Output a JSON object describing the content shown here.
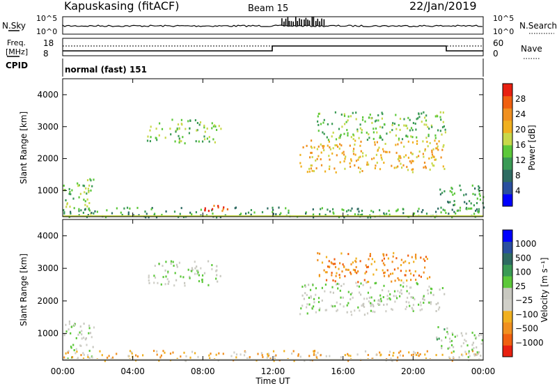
{
  "header": {
    "station": "Kapuskasing (fitACF)",
    "beam": "Beam 15",
    "date": "22/Jan/2019"
  },
  "noise_panel": {
    "left_label": "N.Sky",
    "right_label": "N.Search",
    "ticks": [
      "10^5",
      "10^0"
    ]
  },
  "freq_panel": {
    "left_label_1": "Freq.",
    "left_label_2": "[MHz]",
    "left_ticks": [
      "18",
      "8"
    ],
    "right_label": "Nave",
    "right_ticks": [
      "60",
      "0"
    ]
  },
  "cpid": {
    "label": "CPID",
    "mode": "normal (fast) 151"
  },
  "colors": {
    "power": [
      "#0000ff",
      "#2a4f9e",
      "#2e6b62",
      "#3a9a55",
      "#5cc83a",
      "#c8d84a",
      "#f0b020",
      "#f09020",
      "#f06010",
      "#e82010"
    ],
    "velocity": [
      "#e82010",
      "#f06010",
      "#f09020",
      "#f0b020",
      "#d0cfc8",
      "#c8c8c0",
      "#5cc83a",
      "#3a9a55",
      "#2e6b62",
      "#2a4f9e",
      "#0000ff"
    ]
  },
  "chart_data": [
    {
      "type": "heatmap",
      "name": "power-panel",
      "ylabel": "Slant Range [km]",
      "xlabel": "Time UT",
      "x_ticks": [
        "00:00",
        "04:00",
        "08:00",
        "12:00",
        "16:00",
        "20:00",
        "00:00"
      ],
      "y_ticks": [
        "1000",
        "2000",
        "3000",
        "4000"
      ],
      "ylim": [
        180,
        4500
      ],
      "xlim": [
        0,
        24
      ],
      "colorbar": {
        "label": "Power [dB]",
        "ticks": [
          "4",
          "8",
          "12",
          "16",
          "20",
          "24",
          "28"
        ]
      },
      "regions": [
        {
          "t0": 0.0,
          "t1": 1.8,
          "r0": 250,
          "r1": 1400,
          "level": 4
        },
        {
          "t0": 4.8,
          "t1": 9.0,
          "r0": 2500,
          "r1": 3250,
          "level": 4
        },
        {
          "t0": 0.0,
          "t1": 24.0,
          "r0": 190,
          "r1": 500,
          "level": 3
        },
        {
          "t0": 7.8,
          "t1": 9.4,
          "r0": 350,
          "r1": 600,
          "level": 8
        },
        {
          "t0": 13.5,
          "t1": 21.8,
          "r0": 1600,
          "r1": 2600,
          "level": 6
        },
        {
          "t0": 14.5,
          "t1": 22.0,
          "r0": 2600,
          "r1": 3500,
          "level": 4
        },
        {
          "t0": 21.5,
          "t1": 24.0,
          "r0": 300,
          "r1": 1200,
          "level": 3
        }
      ]
    },
    {
      "type": "heatmap",
      "name": "velocity-panel",
      "ylabel": "Slant Range [km]",
      "xlabel": "Time UT",
      "x_ticks": [
        "00:00",
        "04:00",
        "08:00",
        "12:00",
        "16:00",
        "20:00",
        "00:00"
      ],
      "y_ticks": [
        "1000",
        "2000",
        "3000",
        "4000"
      ],
      "ylim": [
        180,
        4500
      ],
      "xlim": [
        0,
        24
      ],
      "colorbar": {
        "label": "Velocity [m s⁻¹]",
        "ticks": [
          "1000",
          "500",
          "100",
          "25",
          "−25",
          "−100",
          "−500",
          "−1000"
        ]
      },
      "regions": [
        {
          "t0": 0.0,
          "t1": 1.8,
          "r0": 250,
          "r1": 1400,
          "level": 5
        },
        {
          "t0": 4.8,
          "t1": 9.0,
          "r0": 2500,
          "r1": 3250,
          "level": 5
        },
        {
          "t0": 0.0,
          "t1": 24.0,
          "r0": 190,
          "r1": 500,
          "level": 3
        },
        {
          "t0": 13.5,
          "t1": 21.8,
          "r0": 1600,
          "r1": 2600,
          "level": 5
        },
        {
          "t0": 14.5,
          "t1": 21.0,
          "r0": 2600,
          "r1": 3500,
          "level": 2
        },
        {
          "t0": 21.2,
          "t1": 22.2,
          "r0": 800,
          "r1": 1300,
          "level": 6
        },
        {
          "t0": 21.5,
          "t1": 24.0,
          "r0": 300,
          "r1": 1100,
          "level": 5
        }
      ]
    }
  ]
}
